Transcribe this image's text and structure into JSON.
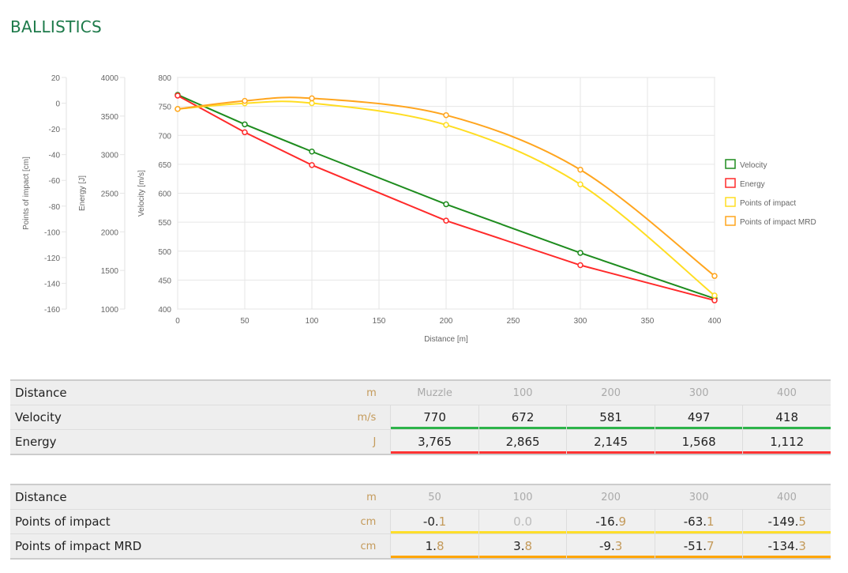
{
  "title": "BALLISTICS",
  "colors": {
    "velocity": "#1e8c1e",
    "energy": "#ff2a2a",
    "poi": "#ffdd22",
    "poi_mrd": "#ffa51e"
  },
  "chart_data": {
    "type": "line",
    "xlabel": "Distance [m]",
    "x": [
      0,
      50,
      100,
      200,
      300,
      400
    ],
    "xticks": [
      0,
      50,
      100,
      150,
      200,
      250,
      300,
      350,
      400
    ],
    "xlim": [
      0,
      400
    ],
    "axes": [
      {
        "id": "velocity",
        "label": "Velocity [m/s]",
        "range": [
          400,
          800
        ],
        "ticks": [
          400,
          450,
          500,
          550,
          600,
          650,
          700,
          750,
          800
        ]
      },
      {
        "id": "energy",
        "label": "Energy [J]",
        "range": [
          1000,
          4000
        ],
        "ticks": [
          1000,
          1500,
          2000,
          2500,
          3000,
          3500,
          4000
        ]
      },
      {
        "id": "poi",
        "label": "Points of impact [cm]",
        "range": [
          -160,
          20
        ],
        "ticks": [
          -160,
          -140,
          -120,
          -100,
          -80,
          -60,
          -40,
          -20,
          0,
          20
        ]
      }
    ],
    "series": [
      {
        "name": "Velocity",
        "axis": "velocity",
        "color": "#1e8c1e",
        "values": [
          770,
          719,
          672,
          581,
          497,
          418
        ],
        "smooth": false
      },
      {
        "name": "Energy",
        "axis": "energy",
        "color": "#ff2a2a",
        "values": [
          3765,
          3290,
          2865,
          2145,
          1568,
          1112
        ],
        "smooth": false
      },
      {
        "name": "Points of impact",
        "axis": "poi",
        "color": "#ffdd22",
        "values": [
          -4.5,
          -0.1,
          0.0,
          -16.9,
          -63.1,
          -149.5
        ],
        "smooth": true
      },
      {
        "name": "Points of impact MRD",
        "axis": "poi",
        "color": "#ffa51e",
        "values": [
          -4.5,
          1.8,
          3.8,
          -9.3,
          -51.7,
          -134.3
        ],
        "smooth": true
      }
    ],
    "legend": "right"
  },
  "table1": {
    "header": {
      "label": "Distance",
      "unit": "m",
      "cols": [
        "Muzzle",
        "100",
        "200",
        "300",
        "400"
      ]
    },
    "rows": [
      {
        "label": "Velocity",
        "unit": "m/s",
        "cls": "g",
        "vals": [
          {
            "w": "770"
          },
          {
            "w": "672"
          },
          {
            "w": "581"
          },
          {
            "w": "497"
          },
          {
            "w": "418"
          }
        ]
      },
      {
        "label": "Energy",
        "unit": "J",
        "cls": "r",
        "vals": [
          {
            "w": "3,765"
          },
          {
            "w": "2,865"
          },
          {
            "w": "2,145"
          },
          {
            "w": "1,568"
          },
          {
            "w": "1,112"
          }
        ]
      }
    ]
  },
  "table2": {
    "header": {
      "label": "Distance",
      "unit": "m",
      "cols": [
        "50",
        "100",
        "200",
        "300",
        "400"
      ]
    },
    "rows": [
      {
        "label": "Points of impact",
        "unit": "cm",
        "cls": "y",
        "vals": [
          {
            "w": "-0.",
            "f": "1"
          },
          {
            "w": "0.",
            "f": "0",
            "grey": true
          },
          {
            "w": "-16.",
            "f": "9"
          },
          {
            "w": "-63.",
            "f": "1"
          },
          {
            "w": "-149.",
            "f": "5"
          }
        ]
      },
      {
        "label": "Points of impact MRD",
        "unit": "cm",
        "cls": "o",
        "vals": [
          {
            "w": "1.",
            "f": "8"
          },
          {
            "w": "3.",
            "f": "8"
          },
          {
            "w": "-9.",
            "f": "3"
          },
          {
            "w": "-51.",
            "f": "7"
          },
          {
            "w": "-134.",
            "f": "3"
          }
        ]
      }
    ]
  }
}
